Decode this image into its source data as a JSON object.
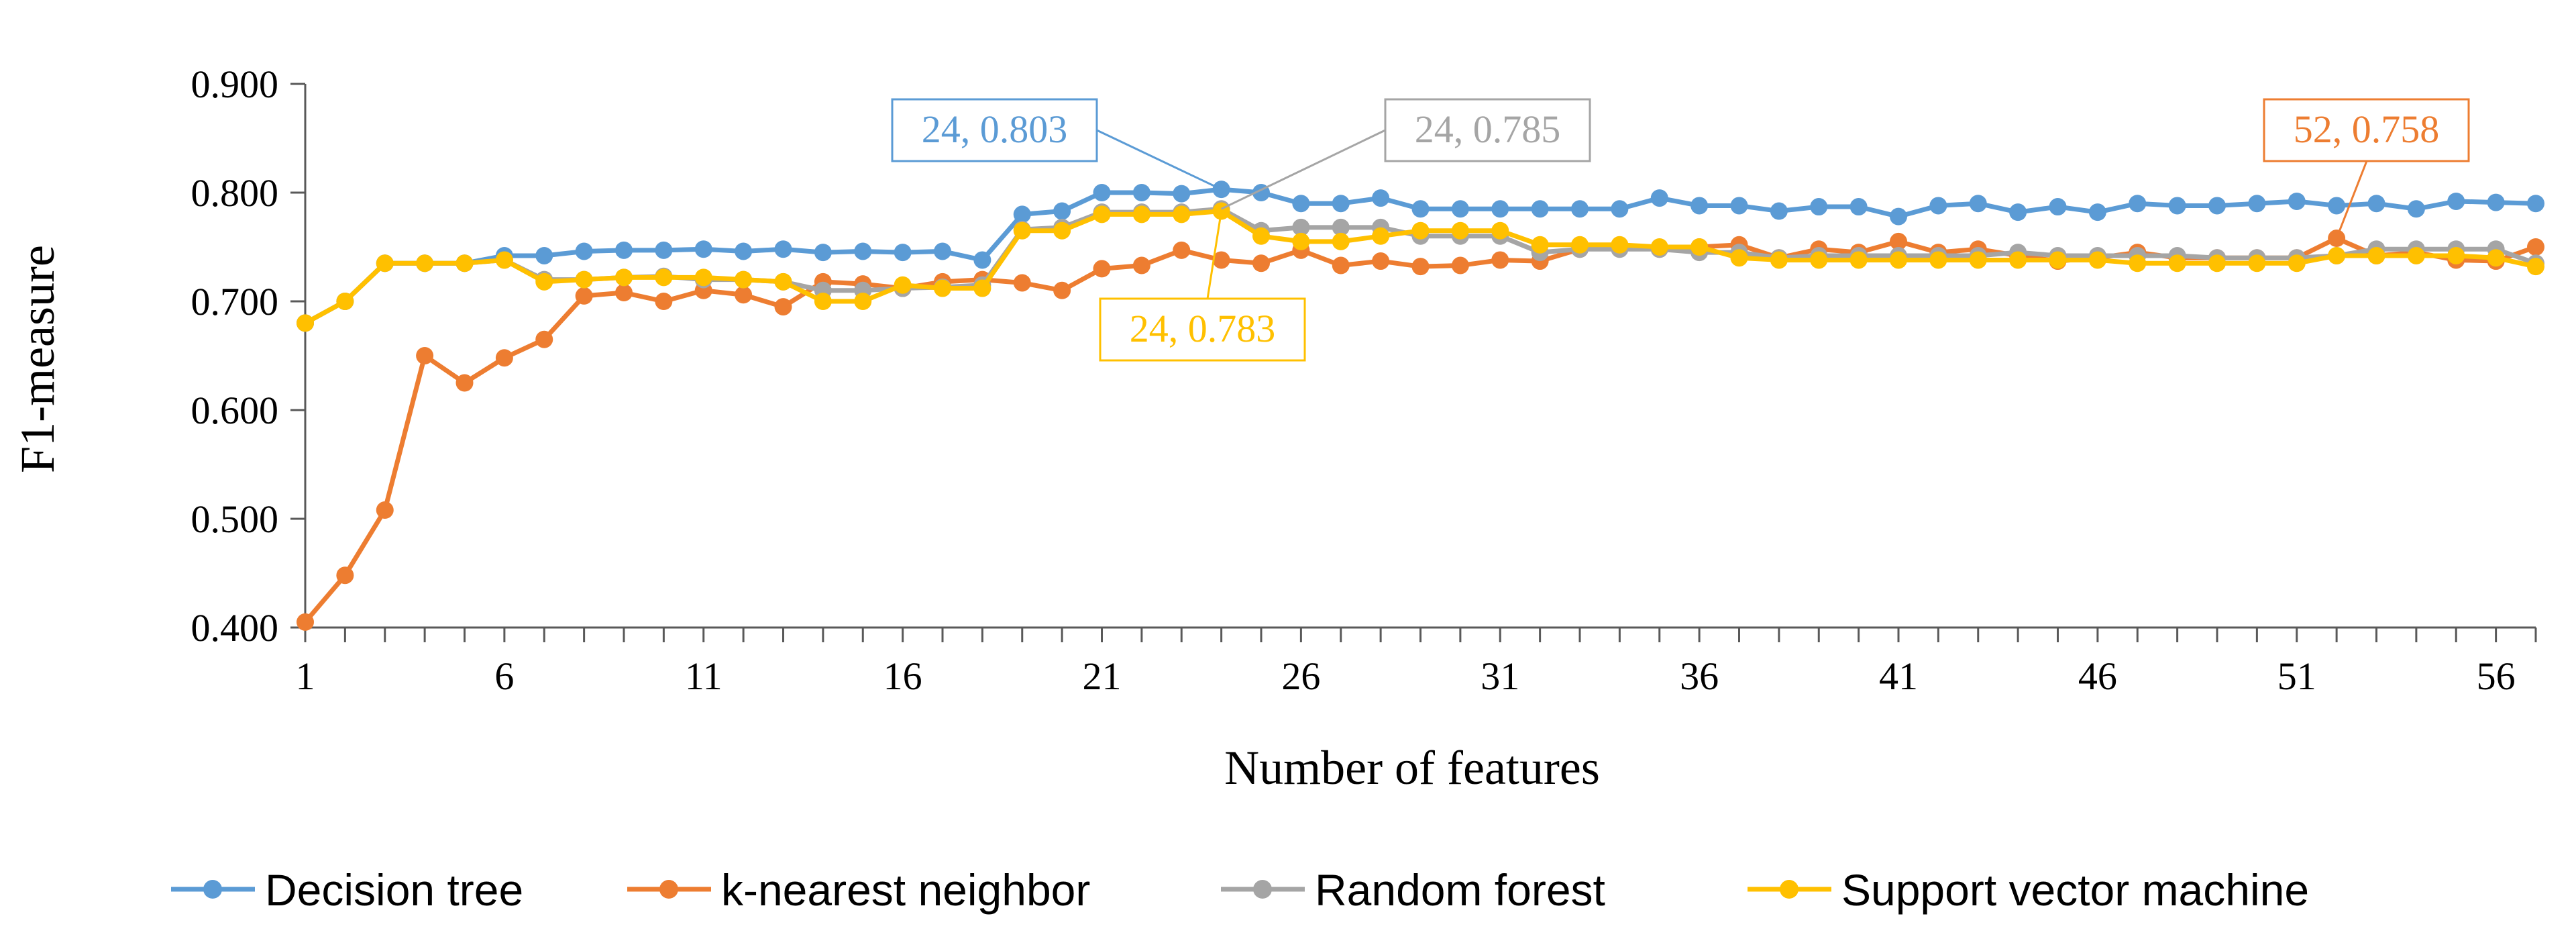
{
  "chart_data": {
    "type": "line",
    "title": "",
    "xlabel": "Number of features",
    "ylabel": "F1-measure",
    "xlim": [
      1,
      57
    ],
    "ylim": [
      0.4,
      0.9
    ],
    "x_ticks": [
      "1",
      "6",
      "11",
      "16",
      "21",
      "26",
      "31",
      "36",
      "41",
      "46",
      "51",
      "56"
    ],
    "y_ticks": [
      "0.400",
      "0.500",
      "0.600",
      "0.700",
      "0.800",
      "0.900"
    ],
    "grid": false,
    "legend_position": "bottom",
    "x": [
      1,
      2,
      3,
      4,
      5,
      6,
      7,
      8,
      9,
      10,
      11,
      12,
      13,
      14,
      15,
      16,
      17,
      18,
      19,
      20,
      21,
      22,
      23,
      24,
      25,
      26,
      27,
      28,
      29,
      30,
      31,
      32,
      33,
      34,
      35,
      36,
      37,
      38,
      39,
      40,
      41,
      42,
      43,
      44,
      45,
      46,
      47,
      48,
      49,
      50,
      51,
      52,
      53,
      54,
      55,
      56,
      57
    ],
    "series": [
      {
        "name": "Decision tree",
        "color": "#5B9BD5",
        "values": [
          0.68,
          0.7,
          0.735,
          0.735,
          0.735,
          0.742,
          0.742,
          0.746,
          0.747,
          0.747,
          0.748,
          0.746,
          0.748,
          0.745,
          0.746,
          0.745,
          0.746,
          0.738,
          0.78,
          0.783,
          0.8,
          0.8,
          0.799,
          0.803,
          0.8,
          0.79,
          0.79,
          0.795,
          0.785,
          0.785,
          0.785,
          0.785,
          0.785,
          0.785,
          0.795,
          0.788,
          0.788,
          0.783,
          0.787,
          0.787,
          0.778,
          0.788,
          0.79,
          0.782,
          0.787,
          0.782,
          0.79,
          0.788,
          0.788,
          0.79,
          0.792,
          0.788,
          0.79,
          0.785,
          0.792,
          0.791,
          0.79
        ]
      },
      {
        "name": "k-nearest neighbor",
        "color": "#ED7D31",
        "values": [
          0.405,
          0.448,
          0.508,
          0.65,
          0.625,
          0.648,
          0.665,
          0.705,
          0.708,
          0.7,
          0.71,
          0.706,
          0.695,
          0.718,
          0.716,
          0.712,
          0.718,
          0.72,
          0.717,
          0.71,
          0.73,
          0.733,
          0.747,
          0.738,
          0.735,
          0.747,
          0.733,
          0.737,
          0.732,
          0.733,
          0.738,
          0.737,
          0.748,
          0.75,
          0.748,
          0.75,
          0.752,
          0.74,
          0.748,
          0.745,
          0.755,
          0.745,
          0.748,
          0.742,
          0.737,
          0.74,
          0.745,
          0.74,
          0.74,
          0.74,
          0.74,
          0.758,
          0.742,
          0.745,
          0.738,
          0.737,
          0.75
        ]
      },
      {
        "name": "Random forest",
        "color": "#A5A5A5",
        "values": [
          0.68,
          0.7,
          0.735,
          0.735,
          0.735,
          0.738,
          0.72,
          0.72,
          0.722,
          0.723,
          0.72,
          0.72,
          0.718,
          0.71,
          0.71,
          0.712,
          0.713,
          0.715,
          0.766,
          0.768,
          0.782,
          0.782,
          0.782,
          0.785,
          0.765,
          0.768,
          0.768,
          0.768,
          0.76,
          0.76,
          0.76,
          0.745,
          0.748,
          0.748,
          0.748,
          0.745,
          0.745,
          0.74,
          0.742,
          0.742,
          0.742,
          0.742,
          0.742,
          0.745,
          0.742,
          0.742,
          0.742,
          0.742,
          0.74,
          0.74,
          0.74,
          0.742,
          0.748,
          0.748,
          0.748,
          0.748,
          0.735
        ]
      },
      {
        "name": "Support vector machine",
        "color": "#FFC000",
        "values": [
          0.68,
          0.7,
          0.735,
          0.735,
          0.735,
          0.738,
          0.718,
          0.72,
          0.722,
          0.722,
          0.722,
          0.72,
          0.718,
          0.7,
          0.7,
          0.715,
          0.712,
          0.712,
          0.765,
          0.765,
          0.78,
          0.78,
          0.78,
          0.783,
          0.76,
          0.755,
          0.755,
          0.76,
          0.765,
          0.765,
          0.765,
          0.752,
          0.752,
          0.752,
          0.75,
          0.75,
          0.74,
          0.738,
          0.738,
          0.738,
          0.738,
          0.738,
          0.738,
          0.738,
          0.738,
          0.738,
          0.735,
          0.735,
          0.735,
          0.735,
          0.735,
          0.742,
          0.742,
          0.742,
          0.742,
          0.74,
          0.732
        ]
      }
    ],
    "annotations": [
      {
        "text": "24, 0.803",
        "series": "Decision tree",
        "x": 24,
        "y": 0.803
      },
      {
        "text": "24, 0.785",
        "series": "Random forest",
        "x": 24,
        "y": 0.785
      },
      {
        "text": "24, 0.783",
        "series": "Support vector machine",
        "x": 24,
        "y": 0.783
      },
      {
        "text": "52, 0.758",
        "series": "k-nearest neighbor",
        "x": 52,
        "y": 0.758
      }
    ]
  }
}
